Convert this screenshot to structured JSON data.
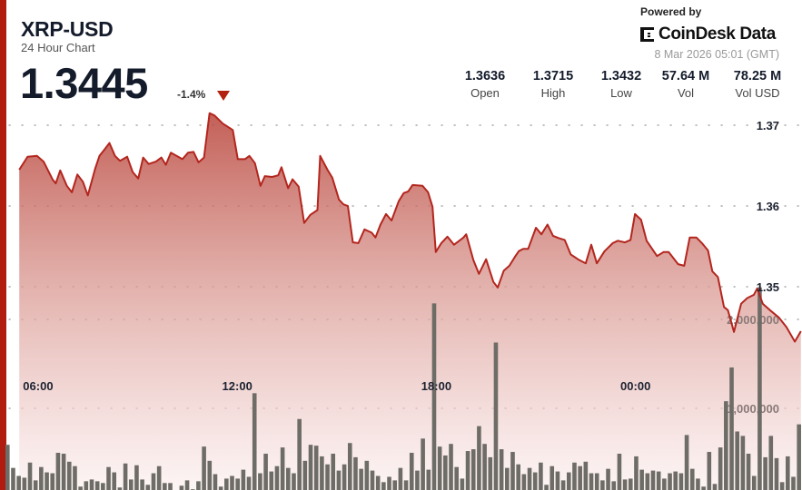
{
  "header": {
    "title": "XRP-USD",
    "subtitle": "24 Hour Chart",
    "price": "1.3445",
    "change": "-1.4%",
    "change_direction_icon": "triangle-down-icon",
    "powered_by": "Powered by",
    "brand": "CoinDesk Data",
    "timestamp": "8 Mar 2026 05:01 (GMT)"
  },
  "stats": [
    {
      "value": "1.3636",
      "label": "Open"
    },
    {
      "value": "1.3715",
      "label": "High"
    },
    {
      "value": "1.3432",
      "label": "Low"
    },
    {
      "value": "57.64 M",
      "label": "Vol"
    },
    {
      "value": "78.25 M",
      "label": "Vol USD"
    }
  ],
  "colors": {
    "accent": "#b01c10",
    "line": "#b3261e",
    "volume_bar": "#6e6c66",
    "down": "#b3210f"
  },
  "chart_data": {
    "type": "area+bar",
    "x_ticks": [
      "06:00",
      "12:00",
      "18:00",
      "00:00"
    ],
    "price_ticks": [
      "1.37",
      "1.36",
      "1.35"
    ],
    "price_tick_values": [
      1.37,
      1.36,
      1.35
    ],
    "volume_ticks": [
      "2,000,000",
      "1,000,000"
    ],
    "volume_tick_values": [
      2000000,
      1000000
    ],
    "x_range": [
      "05:01",
      "05:01"
    ],
    "grid": "dotted horizontal",
    "price": [
      [
        "05:26",
        1.3645
      ],
      [
        "05:41",
        1.3661
      ],
      [
        "05:58",
        1.3662
      ],
      [
        "06:10",
        1.3655
      ],
      [
        "06:26",
        1.3633
      ],
      [
        "06:32",
        1.3628
      ],
      [
        "06:40",
        1.3644
      ],
      [
        "06:52",
        1.3625
      ],
      [
        "07:01",
        1.3617
      ],
      [
        "07:11",
        1.3639
      ],
      [
        "07:21",
        1.363
      ],
      [
        "07:30",
        1.3613
      ],
      [
        "07:43",
        1.3646
      ],
      [
        "07:51",
        1.3662
      ],
      [
        "07:59",
        1.3669
      ],
      [
        "08:09",
        1.3678
      ],
      [
        "08:19",
        1.3662
      ],
      [
        "08:28",
        1.3656
      ],
      [
        "08:41",
        1.3661
      ],
      [
        "08:51",
        1.3642
      ],
      [
        "09:01",
        1.3634
      ],
      [
        "09:10",
        1.366
      ],
      [
        "09:20",
        1.3652
      ],
      [
        "09:33",
        1.3655
      ],
      [
        "09:43",
        1.366
      ],
      [
        "09:51",
        1.3651
      ],
      [
        "10:00",
        1.3666
      ],
      [
        "10:21",
        1.3658
      ],
      [
        "10:31",
        1.3666
      ],
      [
        "10:41",
        1.3667
      ],
      [
        "10:50",
        1.3654
      ],
      [
        "11:00",
        1.366
      ],
      [
        "11:10",
        1.3715
      ],
      [
        "11:19",
        1.3712
      ],
      [
        "11:34",
        1.3702
      ],
      [
        "11:52",
        1.3694
      ],
      [
        "12:01",
        1.3658
      ],
      [
        "12:14",
        1.3658
      ],
      [
        "12:22",
        1.3662
      ],
      [
        "12:32",
        1.3653
      ],
      [
        "12:42",
        1.3625
      ],
      [
        "12:50",
        1.3637
      ],
      [
        "13:03",
        1.3636
      ],
      [
        "13:14",
        1.3638
      ],
      [
        "13:20",
        1.3648
      ],
      [
        "13:32",
        1.3622
      ],
      [
        "13:40",
        1.3633
      ],
      [
        "13:51",
        1.3624
      ],
      [
        "14:01",
        1.3579
      ],
      [
        "14:12",
        1.3589
      ],
      [
        "14:25",
        1.3595
      ],
      [
        "14:30",
        1.3662
      ],
      [
        "14:43",
        1.3645
      ],
      [
        "14:52",
        1.3635
      ],
      [
        "15:04",
        1.3608
      ],
      [
        "15:12",
        1.3602
      ],
      [
        "15:20",
        1.36
      ],
      [
        "15:29",
        1.3555
      ],
      [
        "15:39",
        1.3554
      ],
      [
        "15:50",
        1.3571
      ],
      [
        "16:03",
        1.3567
      ],
      [
        "16:10",
        1.3561
      ],
      [
        "16:19",
        1.3577
      ],
      [
        "16:29",
        1.359
      ],
      [
        "16:39",
        1.3582
      ],
      [
        "16:52",
        1.3606
      ],
      [
        "17:01",
        1.3616
      ],
      [
        "17:09",
        1.3618
      ],
      [
        "17:17",
        1.3626
      ],
      [
        "17:35",
        1.3625
      ],
      [
        "17:45",
        1.3617
      ],
      [
        "17:53",
        1.3599
      ],
      [
        "17:59",
        1.3543
      ],
      [
        "18:09",
        1.3554
      ],
      [
        "18:20",
        1.3562
      ],
      [
        "18:32",
        1.3552
      ],
      [
        "18:49",
        1.3561
      ],
      [
        "18:54",
        1.3565
      ],
      [
        "19:07",
        1.3533
      ],
      [
        "19:17",
        1.3516
      ],
      [
        "19:30",
        1.3534
      ],
      [
        "19:43",
        1.3506
      ],
      [
        "19:51",
        1.3499
      ],
      [
        "20:02",
        1.352
      ],
      [
        "20:12",
        1.3526
      ],
      [
        "20:23",
        1.3538
      ],
      [
        "20:29",
        1.3544
      ],
      [
        "20:37",
        1.3547
      ],
      [
        "20:46",
        1.3547
      ],
      [
        "21:00",
        1.3573
      ],
      [
        "21:10",
        1.3565
      ],
      [
        "21:21",
        1.3577
      ],
      [
        "21:31",
        1.3563
      ],
      [
        "21:42",
        1.356
      ],
      [
        "21:52",
        1.3558
      ],
      [
        "22:03",
        1.354
      ],
      [
        "22:16",
        1.3534
      ],
      [
        "22:30",
        1.3529
      ],
      [
        "22:40",
        1.3552
      ],
      [
        "22:50",
        1.3529
      ],
      [
        "23:04",
        1.3544
      ],
      [
        "23:19",
        1.3554
      ],
      [
        "23:28",
        1.3557
      ],
      [
        "23:41",
        1.3555
      ],
      [
        "23:51",
        1.3558
      ],
      [
        "23:59",
        1.359
      ],
      [
        "00:10",
        1.3583
      ],
      [
        "00:20",
        1.3557
      ],
      [
        "00:39",
        1.3538
      ],
      [
        "00:51",
        1.3543
      ],
      [
        "01:00",
        1.3543
      ],
      [
        "01:17",
        1.3528
      ],
      [
        "01:28",
        1.3526
      ],
      [
        "01:38",
        1.3561
      ],
      [
        "01:50",
        1.3561
      ],
      [
        "02:00",
        1.3554
      ],
      [
        "02:11",
        1.3545
      ],
      [
        "02:19",
        1.3519
      ],
      [
        "02:29",
        1.3512
      ],
      [
        "02:40",
        1.3475
      ],
      [
        "02:47",
        1.3471
      ],
      [
        "02:58",
        1.3444
      ],
      [
        "03:11",
        1.3479
      ],
      [
        "03:22",
        1.3486
      ],
      [
        "03:34",
        1.349
      ],
      [
        "03:40",
        1.3498
      ],
      [
        "03:50",
        1.3479
      ],
      [
        "04:03",
        1.3471
      ],
      [
        "04:19",
        1.3462
      ],
      [
        "04:33",
        1.345
      ],
      [
        "04:48",
        1.3432
      ],
      [
        "04:59",
        1.3445
      ]
    ],
    "volume": [
      590000,
      330000,
      240000,
      220000,
      390000,
      190000,
      340000,
      280000,
      270000,
      500000,
      490000,
      400000,
      350000,
      120000,
      180000,
      200000,
      180000,
      160000,
      340000,
      280000,
      110000,
      380000,
      200000,
      360000,
      200000,
      140000,
      270000,
      350000,
      160000,
      160000,
      80000,
      130000,
      190000,
      90000,
      180000,
      570000,
      410000,
      260000,
      120000,
      210000,
      240000,
      210000,
      310000,
      230000,
      1170000,
      270000,
      490000,
      290000,
      350000,
      560000,
      330000,
      270000,
      880000,
      410000,
      590000,
      580000,
      460000,
      370000,
      490000,
      300000,
      370000,
      610000,
      450000,
      320000,
      410000,
      300000,
      240000,
      170000,
      230000,
      190000,
      330000,
      190000,
      500000,
      300000,
      660000,
      310000,
      2180000,
      570000,
      470000,
      600000,
      340000,
      210000,
      520000,
      540000,
      800000,
      600000,
      450000,
      1740000,
      540000,
      330000,
      510000,
      370000,
      260000,
      330000,
      280000,
      390000,
      140000,
      350000,
      290000,
      190000,
      280000,
      390000,
      350000,
      400000,
      270000,
      270000,
      190000,
      320000,
      180000,
      490000,
      200000,
      210000,
      460000,
      310000,
      270000,
      300000,
      290000,
      210000,
      270000,
      290000,
      270000,
      700000,
      320000,
      210000,
      120000,
      510000,
      150000,
      560000,
      1080000,
      1460000,
      740000,
      690000,
      490000,
      240000,
      2360000,
      450000,
      690000,
      440000,
      170000,
      460000,
      230000,
      820000
    ]
  }
}
